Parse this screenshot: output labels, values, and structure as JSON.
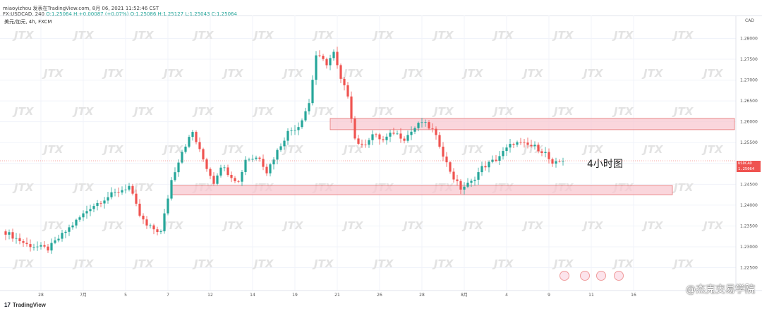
{
  "header": {
    "line1": "miaoyizhou 发表在TradingView.com, 8月 06, 2021 11:52:46 CST",
    "line2_prefix": "FX:USDCAD, 240",
    "line2_ohlc": "O:1.25064 H:+0.00087 (+0.07%) O:1.25086 H:1.25127 L:1.25043 C:1.25064"
  },
  "symbol_line": "美元/加元, 4h, FXCM",
  "currency_label": "CAD",
  "price_tag": {
    "symbol": "USDCAD",
    "price": "1.25064",
    "countdown": "03:07:33"
  },
  "annotation": "4小时图",
  "footer": {
    "logo": "TradingView",
    "watermark": "@杰克交易学院"
  },
  "watermark_text": "JTX",
  "colors": {
    "up": "#26a69a",
    "down": "#ef5350",
    "zone_fill": "#f8c8d0",
    "zone_border": "#e57373",
    "grid": "#f0f3fa"
  },
  "chart_data": {
    "type": "candlestick",
    "title": "美元/加元, 4h, FXCM",
    "ylabel": "CAD",
    "ylim": [
      1.2195,
      1.2855
    ],
    "yticks": [
      "1.28000",
      "1.27500",
      "1.27000",
      "1.26500",
      "1.26000",
      "1.25500",
      "1.25000",
      "1.24500",
      "1.24000",
      "1.23500",
      "1.23000",
      "1.22500"
    ],
    "xticks": [
      {
        "label": "28",
        "index": 10
      },
      {
        "label": "7月",
        "index": 22
      },
      {
        "label": "5",
        "index": 34
      },
      {
        "label": "7",
        "index": 46
      },
      {
        "label": "12",
        "index": 58
      },
      {
        "label": "14",
        "index": 70
      },
      {
        "label": "19",
        "index": 82
      },
      {
        "label": "21",
        "index": 94
      },
      {
        "label": "26",
        "index": 106
      },
      {
        "label": "28",
        "index": 118
      },
      {
        "label": "8月",
        "index": 130
      },
      {
        "label": "4",
        "index": 142
      },
      {
        "label": "9",
        "index": 154
      },
      {
        "label": "11",
        "index": 166
      },
      {
        "label": "16",
        "index": 178
      }
    ],
    "close_anchors": [
      [
        0,
        1.2335
      ],
      [
        6,
        1.2305
      ],
      [
        12,
        1.2295
      ],
      [
        18,
        1.2345
      ],
      [
        24,
        1.2395
      ],
      [
        30,
        1.2425
      ],
      [
        35,
        1.2445
      ],
      [
        38,
        1.2375
      ],
      [
        40,
        1.235
      ],
      [
        44,
        1.2335
      ],
      [
        47,
        1.246
      ],
      [
        50,
        1.253
      ],
      [
        53,
        1.2575
      ],
      [
        55,
        1.253
      ],
      [
        57,
        1.249
      ],
      [
        59,
        1.2455
      ],
      [
        61,
        1.2495
      ],
      [
        64,
        1.247
      ],
      [
        66,
        1.2455
      ],
      [
        68,
        1.251
      ],
      [
        72,
        1.2515
      ],
      [
        74,
        1.248
      ],
      [
        77,
        1.253
      ],
      [
        80,
        1.2575
      ],
      [
        83,
        1.259
      ],
      [
        86,
        1.2645
      ],
      [
        88,
        1.276
      ],
      [
        91,
        1.274
      ],
      [
        93,
        1.2765
      ],
      [
        95,
        1.27
      ],
      [
        97,
        1.2665
      ],
      [
        99,
        1.256
      ],
      [
        101,
        1.254
      ],
      [
        104,
        1.257
      ],
      [
        107,
        1.2555
      ],
      [
        110,
        1.2575
      ],
      [
        113,
        1.256
      ],
      [
        116,
        1.2585
      ],
      [
        118,
        1.26
      ],
      [
        121,
        1.258
      ],
      [
        123,
        1.2545
      ],
      [
        125,
        1.25
      ],
      [
        127,
        1.2465
      ],
      [
        129,
        1.244
      ],
      [
        132,
        1.2455
      ],
      [
        135,
        1.249
      ],
      [
        139,
        1.251
      ],
      [
        142,
        1.2535
      ],
      [
        144,
        1.255
      ],
      [
        147,
        1.2545
      ],
      [
        150,
        1.254
      ],
      [
        153,
        1.2525
      ],
      [
        155,
        1.2495
      ],
      [
        157,
        1.2505
      ],
      [
        158,
        1.2506
      ]
    ],
    "zones": [
      {
        "name": "resistance",
        "from_index": 92,
        "to_index": 220,
        "low": 1.2581,
        "high": 1.2608
      },
      {
        "name": "support",
        "from_index": 47,
        "to_index": 189,
        "low": 1.2425,
        "high": 1.2447
      }
    ],
    "last_price": 1.25064
  }
}
